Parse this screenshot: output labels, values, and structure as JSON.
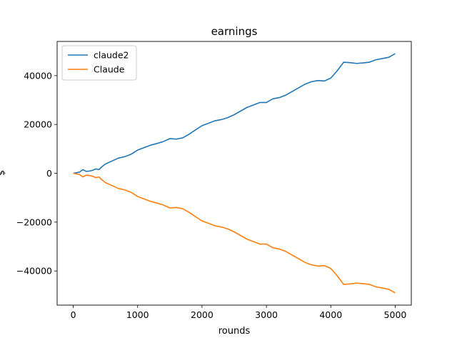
{
  "chart_data": {
    "type": "line",
    "title": "earnings",
    "xlabel": "rounds",
    "ylabel": "$",
    "xlim": [
      -250,
      5250
    ],
    "ylim": [
      -54000,
      54000
    ],
    "xticks": [
      0,
      1000,
      2000,
      3000,
      4000,
      5000
    ],
    "yticks": [
      -40000,
      -20000,
      0,
      20000,
      40000
    ],
    "grid": false,
    "legend_position": "top-left",
    "series": [
      {
        "name": "claude2",
        "color": "#1f77b4",
        "x": [
          0,
          100,
          150,
          200,
          250,
          300,
          350,
          400,
          450,
          500,
          600,
          700,
          800,
          900,
          1000,
          1100,
          1200,
          1300,
          1400,
          1500,
          1600,
          1700,
          1800,
          1900,
          2000,
          2100,
          2200,
          2300,
          2400,
          2500,
          2600,
          2700,
          2800,
          2900,
          3000,
          3100,
          3200,
          3300,
          3400,
          3500,
          3600,
          3700,
          3800,
          3900,
          4000,
          4100,
          4200,
          4300,
          4400,
          4500,
          4600,
          4700,
          4800,
          4900,
          5000
        ],
        "values": [
          0,
          500,
          1500,
          800,
          900,
          1200,
          1800,
          1500,
          2800,
          3800,
          5000,
          6200,
          6800,
          7800,
          9500,
          10500,
          11500,
          12200,
          13000,
          14200,
          14000,
          14500,
          16000,
          17800,
          19500,
          20500,
          21500,
          22000,
          22800,
          24000,
          25500,
          27000,
          28000,
          29000,
          29000,
          30500,
          31000,
          32000,
          33500,
          35000,
          36500,
          37500,
          38000,
          37800,
          39000,
          42000,
          45500,
          45300,
          45000,
          45200,
          45500,
          46500,
          47000,
          47500,
          49000
        ]
      },
      {
        "name": "Claude",
        "color": "#ff7f0e",
        "x": [
          0,
          100,
          150,
          200,
          250,
          300,
          350,
          400,
          450,
          500,
          600,
          700,
          800,
          900,
          1000,
          1100,
          1200,
          1300,
          1400,
          1500,
          1600,
          1700,
          1800,
          1900,
          2000,
          2100,
          2200,
          2300,
          2400,
          2500,
          2600,
          2700,
          2800,
          2900,
          3000,
          3100,
          3200,
          3300,
          3400,
          3500,
          3600,
          3700,
          3800,
          3900,
          4000,
          4100,
          4200,
          4300,
          4400,
          4500,
          4600,
          4700,
          4800,
          4900,
          5000
        ],
        "values": [
          0,
          -500,
          -1500,
          -800,
          -900,
          -1200,
          -1800,
          -1500,
          -2800,
          -3800,
          -5000,
          -6200,
          -6800,
          -7800,
          -9500,
          -10500,
          -11500,
          -12200,
          -13000,
          -14200,
          -14000,
          -14500,
          -16000,
          -17800,
          -19500,
          -20500,
          -21500,
          -22000,
          -22800,
          -24000,
          -25500,
          -27000,
          -28000,
          -29000,
          -29000,
          -30500,
          -31000,
          -32000,
          -33500,
          -35000,
          -36500,
          -37500,
          -38000,
          -37800,
          -39000,
          -42000,
          -45500,
          -45300,
          -45000,
          -45200,
          -45500,
          -46500,
          -47000,
          -47500,
          -49000
        ]
      }
    ]
  }
}
